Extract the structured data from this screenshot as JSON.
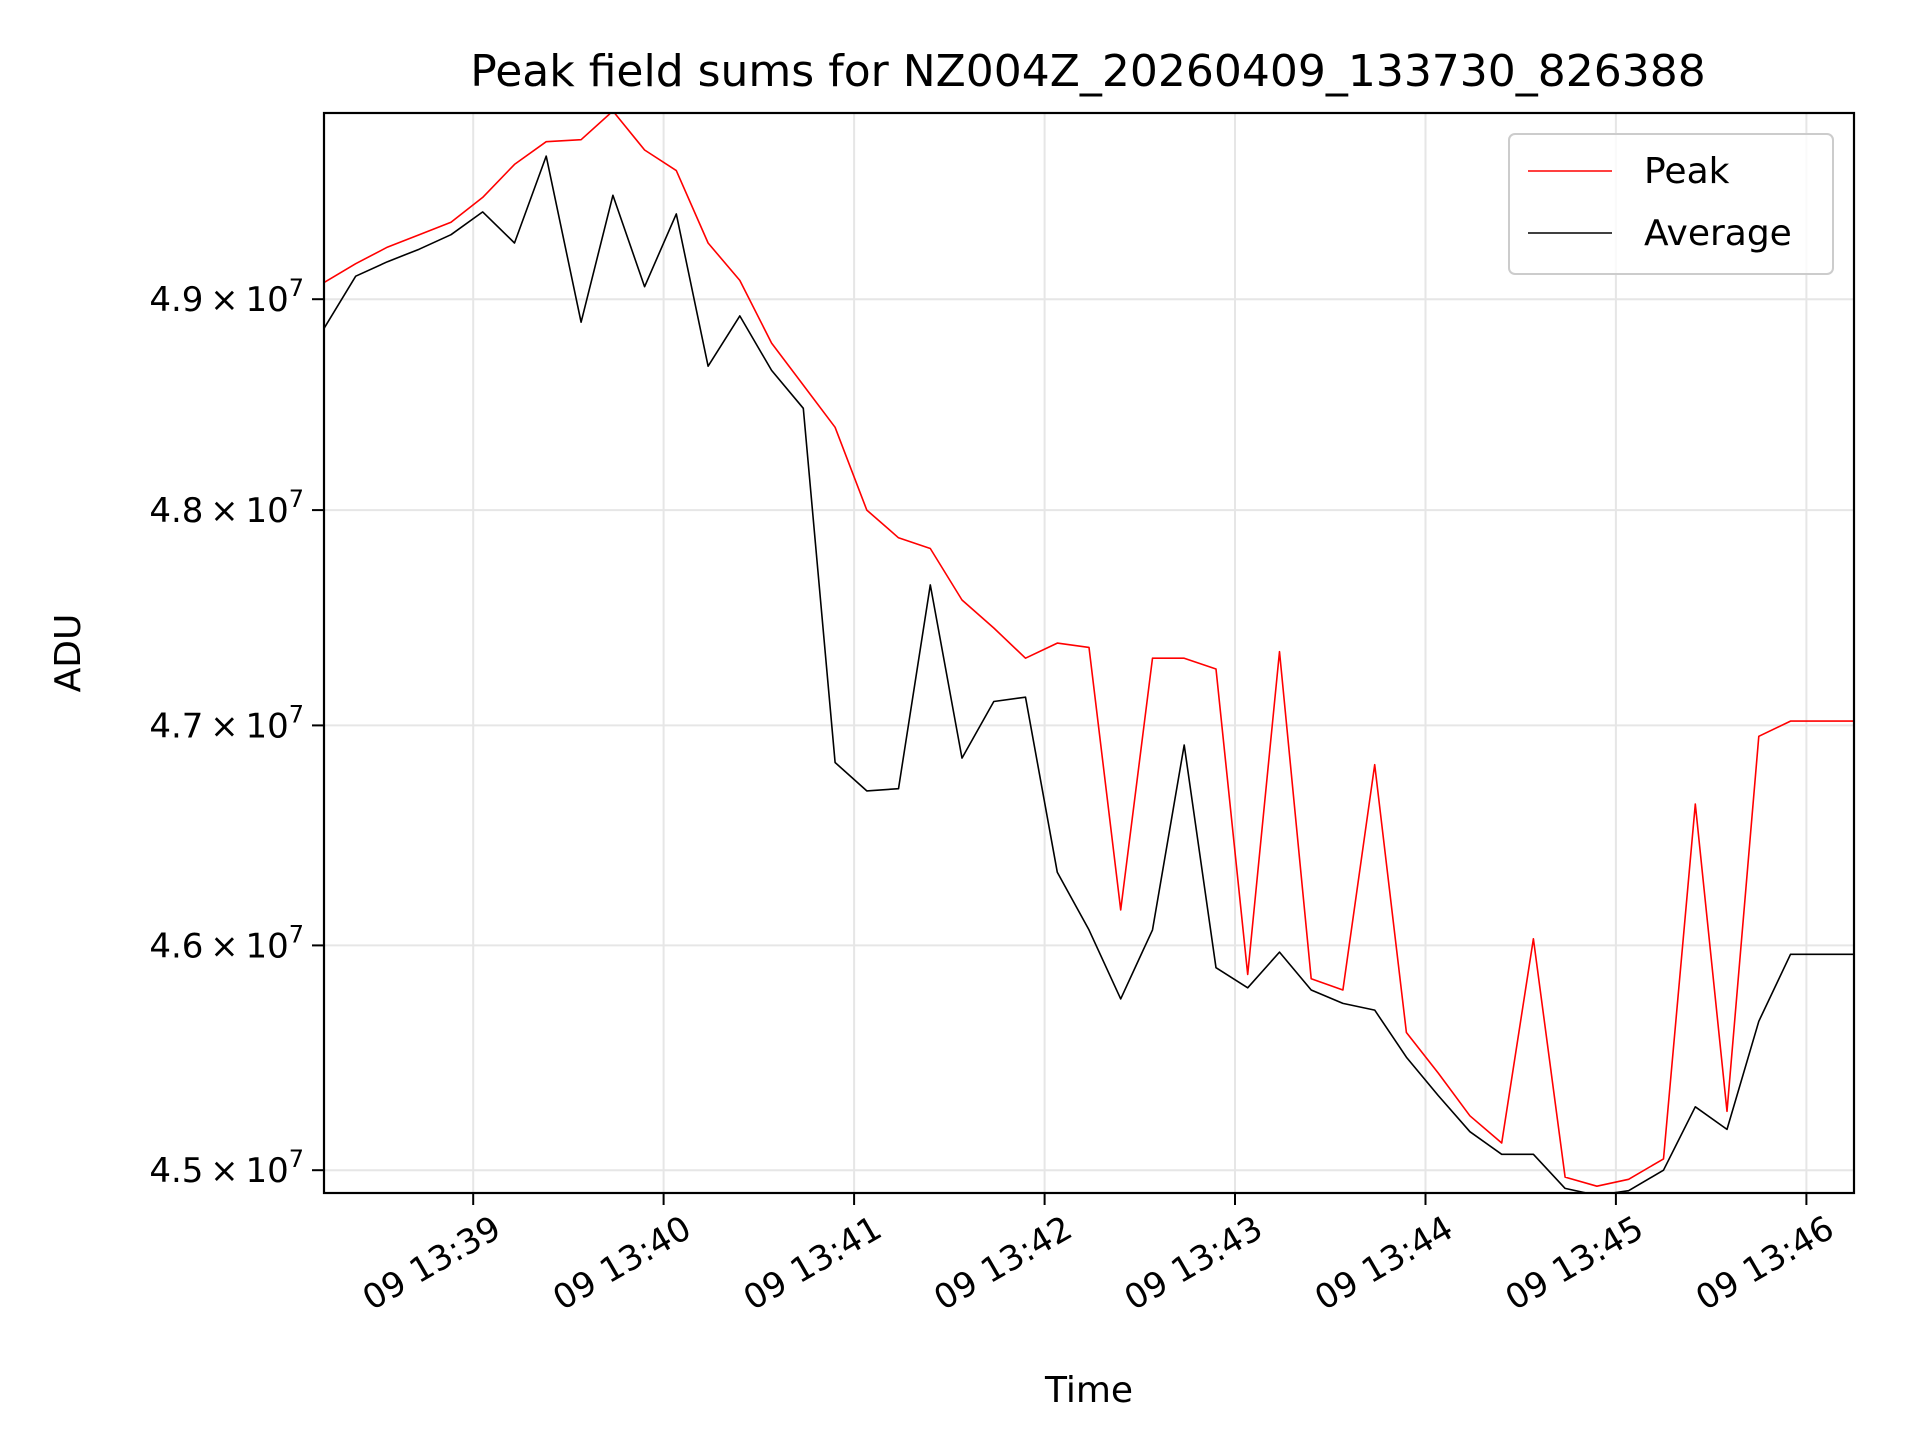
{
  "chart_data": {
    "type": "line",
    "title": "Peak field sums for NZ004Z_20260409_133730_826388",
    "xlabel": "Time",
    "ylabel": "ADU",
    "y_scale": "log",
    "grid": true,
    "legend_position": "top-right",
    "xlim": [
      "13:38:13",
      "13:46:15"
    ],
    "ylim": [
      44900000,
      49900000
    ],
    "x_ticks": [
      {
        "value": "13:39:00",
        "label": "09 13:39"
      },
      {
        "value": "13:40:00",
        "label": "09 13:40"
      },
      {
        "value": "13:41:00",
        "label": "09 13:41"
      },
      {
        "value": "13:42:00",
        "label": "09 13:42"
      },
      {
        "value": "13:43:00",
        "label": "09 13:43"
      },
      {
        "value": "13:44:00",
        "label": "09 13:44"
      },
      {
        "value": "13:45:00",
        "label": "09 13:45"
      },
      {
        "value": "13:46:00",
        "label": "09 13:46"
      }
    ],
    "y_ticks": [
      {
        "value": 45000000,
        "mantissa": "4.5",
        "base": "10",
        "exp": "7"
      },
      {
        "value": 46000000,
        "mantissa": "4.6",
        "base": "10",
        "exp": "7"
      },
      {
        "value": 47000000,
        "mantissa": "4.7",
        "base": "10",
        "exp": "7"
      },
      {
        "value": 48000000,
        "mantissa": "4.8",
        "base": "10",
        "exp": "7"
      },
      {
        "value": 49000000,
        "mantissa": "4.9",
        "base": "10",
        "exp": "7"
      }
    ],
    "x": [
      "13:38:13",
      "13:38:23",
      "13:38:33",
      "13:38:43",
      "13:38:53",
      "13:39:03",
      "13:39:13",
      "13:39:23",
      "13:39:34",
      "13:39:44",
      "13:39:54",
      "13:40:04",
      "13:40:14",
      "13:40:24",
      "13:40:34",
      "13:40:44",
      "13:40:54",
      "13:41:04",
      "13:41:14",
      "13:41:24",
      "13:41:34",
      "13:41:44",
      "13:41:54",
      "13:42:04",
      "13:42:14",
      "13:42:24",
      "13:42:34",
      "13:42:44",
      "13:42:54",
      "13:43:04",
      "13:43:14",
      "13:43:24",
      "13:43:34",
      "13:43:44",
      "13:43:54",
      "13:44:04",
      "13:44:14",
      "13:44:24",
      "13:44:34",
      "13:44:44",
      "13:44:54",
      "13:45:04",
      "13:45:15",
      "13:45:25",
      "13:45:35",
      "13:45:45",
      "13:45:55",
      "13:46:05",
      "13:46:15"
    ],
    "series": [
      {
        "name": "Peak",
        "color": "#ff0000",
        "values": [
          49080000,
          49170000,
          49250000,
          49310000,
          49370000,
          49490000,
          49650000,
          49760000,
          49770000,
          49910000,
          49720000,
          49620000,
          49270000,
          49090000,
          48790000,
          48590000,
          48390000,
          48000000,
          47870000,
          47820000,
          47580000,
          47450000,
          47310000,
          47380000,
          47360000,
          46160000,
          47310000,
          47310000,
          47260000,
          45870000,
          47340000,
          45850000,
          45800000,
          46820000,
          45610000,
          45430000,
          45240000,
          45120000,
          46030000,
          44970000,
          44930000,
          44960000,
          45050000,
          46640000,
          45260000,
          46950000,
          47020000,
          47020000,
          47020000
        ]
      },
      {
        "name": "Average",
        "color": "#000000",
        "values": [
          48860000,
          49110000,
          49180000,
          49240000,
          49310000,
          49420000,
          49270000,
          49690000,
          48890000,
          49500000,
          49060000,
          49410000,
          48680000,
          48920000,
          48660000,
          48480000,
          46830000,
          46700000,
          46710000,
          47650000,
          46850000,
          47110000,
          47130000,
          46330000,
          46070000,
          45760000,
          46070000,
          46910000,
          45900000,
          45810000,
          45970000,
          45800000,
          45740000,
          45710000,
          45500000,
          45330000,
          45170000,
          45070000,
          45070000,
          44920000,
          44890000,
          44910000,
          45000000,
          45280000,
          45180000,
          45660000,
          45960000,
          45960000,
          45960000
        ]
      }
    ]
  }
}
